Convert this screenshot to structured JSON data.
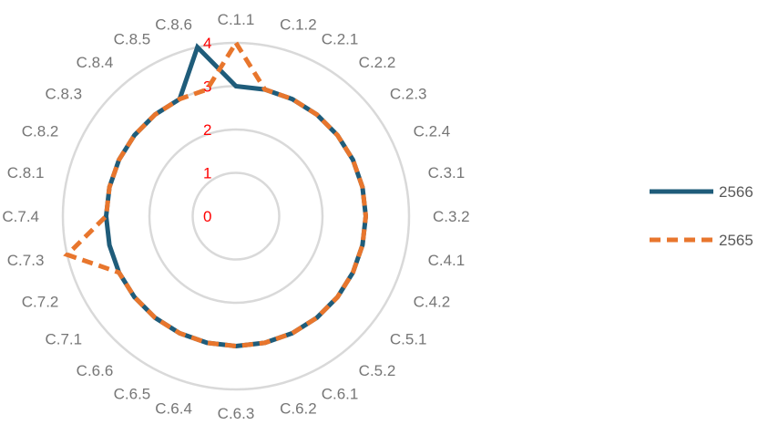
{
  "chart_data": {
    "type": "radar",
    "categories": [
      "C.1.1",
      "C.1.2",
      "C.2.1",
      "C.2.2",
      "C.2.3",
      "C.2.4",
      "C.3.1",
      "C.3.2",
      "C.4.1",
      "C.4.2",
      "C.5.1",
      "C.5.2",
      "C.6.1",
      "C.6.2",
      "C.6.3",
      "C.6.4",
      "C.6.5",
      "C.6.6",
      "C.7.1",
      "C.7.2",
      "C.7.3",
      "C.7.4",
      "C.8.1",
      "C.8.2",
      "C.8.3",
      "C.8.4",
      "C.8.5",
      "C.8.6"
    ],
    "rlim": [
      0,
      4
    ],
    "ticks": [
      0,
      1,
      2,
      3,
      4
    ],
    "tick_labels": [
      "0",
      "1",
      "2",
      "3",
      "4"
    ],
    "grid": true,
    "legend_position": "right",
    "series": [
      {
        "name": "2566",
        "color": "#1f5c7a",
        "style": "solid",
        "values": [
          3,
          3,
          3,
          3,
          3,
          3,
          3,
          3,
          3,
          3,
          3,
          3,
          3,
          3,
          3,
          3,
          3,
          3,
          3,
          3,
          3,
          3,
          3,
          3,
          3,
          3,
          3,
          4
        ]
      },
      {
        "name": "2565",
        "color": "#e8762d",
        "style": "dashed",
        "values": [
          4,
          3,
          3,
          3,
          3,
          3,
          3,
          3,
          3,
          3,
          3,
          3,
          3,
          3,
          3,
          3,
          3,
          3,
          3,
          3,
          4,
          3,
          3,
          3,
          3,
          3,
          3,
          3
        ]
      }
    ]
  }
}
